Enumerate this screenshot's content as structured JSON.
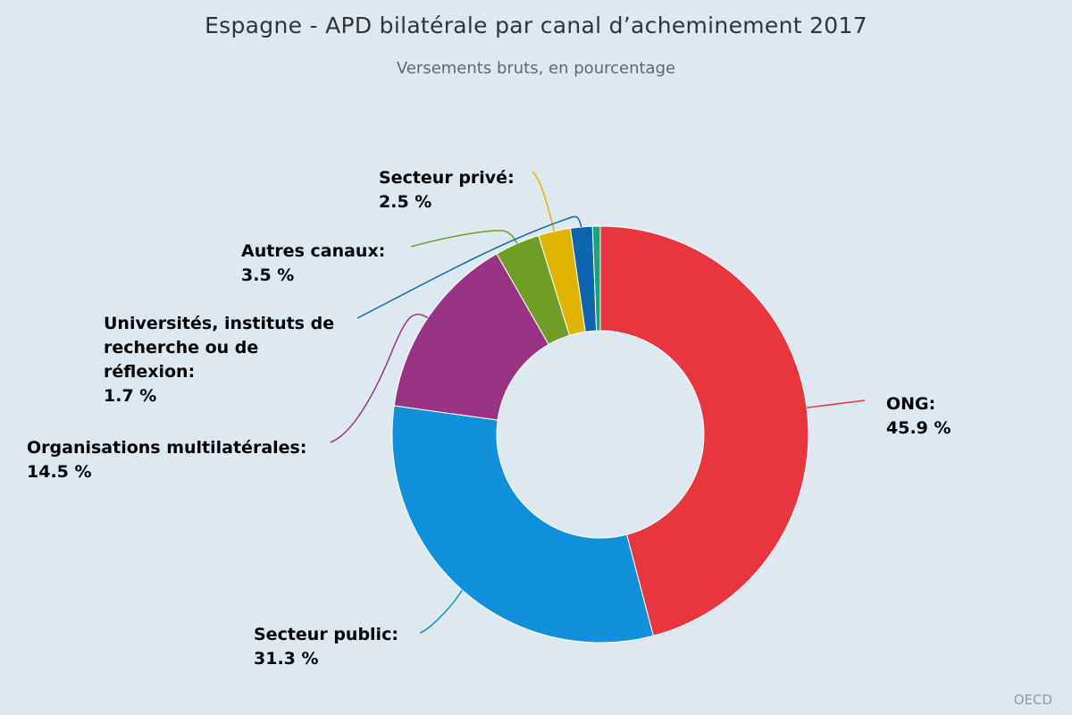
{
  "chart_data": {
    "type": "pie",
    "variant": "donut",
    "title": "Espagne - APD bilatérale par canal d’acheminement 2017",
    "subtitle": "Versements bruts, en pourcentage",
    "credit": "OECD",
    "unit": "%",
    "slices": [
      {
        "label": "ONG:",
        "value": 45.9,
        "color": "#e8363f"
      },
      {
        "label": "Secteur public:",
        "value": 31.3,
        "color": "#108fdb"
      },
      {
        "label": "Organisations multilatérales:",
        "value": 14.5,
        "color": "#993484"
      },
      {
        "label": "Autres canaux:",
        "value": 3.5,
        "color": "#6f9e27"
      },
      {
        "label": "Secteur privé:",
        "value": 2.5,
        "color": "#e0b400"
      },
      {
        "label": "Universités, instituts de recherche ou de réflexion:",
        "value": 1.7,
        "color": "#0e64ad"
      },
      {
        "label": "",
        "value": 0.6,
        "color": "#1ba47c"
      }
    ]
  }
}
